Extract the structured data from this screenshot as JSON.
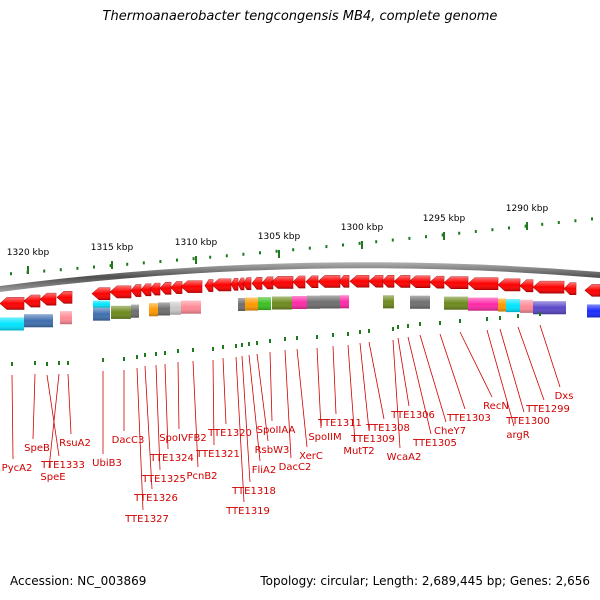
{
  "title": "Thermoanaerobacter tengcongensis MB4, complete genome",
  "footer": {
    "accession": "Accession: NC_003869",
    "summary": "Topology: circular; Length: 2,689,445 bp; Genes: 2,656"
  },
  "colors": {
    "forward_gene": "#ff0000",
    "cog_blue": "#3f6fb0",
    "cog_cyan": "#00e5ff",
    "cog_pink": "#ff8a96",
    "cog_olive": "#6e8a1e",
    "cog_gray": "#6f6f6f",
    "cog_orange": "#ff9a00",
    "cog_green": "#3cbf20",
    "cog_magenta": "#ff2aa8",
    "cog_purple": "#5b48c8",
    "label_color": "#d00000"
  },
  "ruler": {
    "ticks": [
      "1320 kbp",
      "1315 kbp",
      "1310 kbp",
      "1305 kbp",
      "1300 kbp",
      "1295 kbp",
      "1290 kbp"
    ]
  },
  "genes": [
    "PycA2",
    "SpeB",
    "TTE1333",
    "SpeE",
    "RsuA2",
    "UbiB3",
    "DacC3",
    "TTE1327",
    "TTE1326",
    "TTE1325",
    "TTE1324",
    "SpoIVFB2",
    "PcnB2",
    "TTE1321",
    "TTE1320",
    "TTE1319",
    "TTE1318",
    "FliA2",
    "RsbW3",
    "SpoIIAA",
    "DacC2",
    "XerC",
    "SpoIIM",
    "TTE1311",
    "MutT2",
    "TTE1309",
    "TTE1308",
    "WcaA2",
    "TTE1306",
    "TTE1305",
    "CheY7",
    "TTE1303",
    "RecN",
    "argR",
    "TTE1300",
    "TTE1299",
    "Dxs"
  ]
}
